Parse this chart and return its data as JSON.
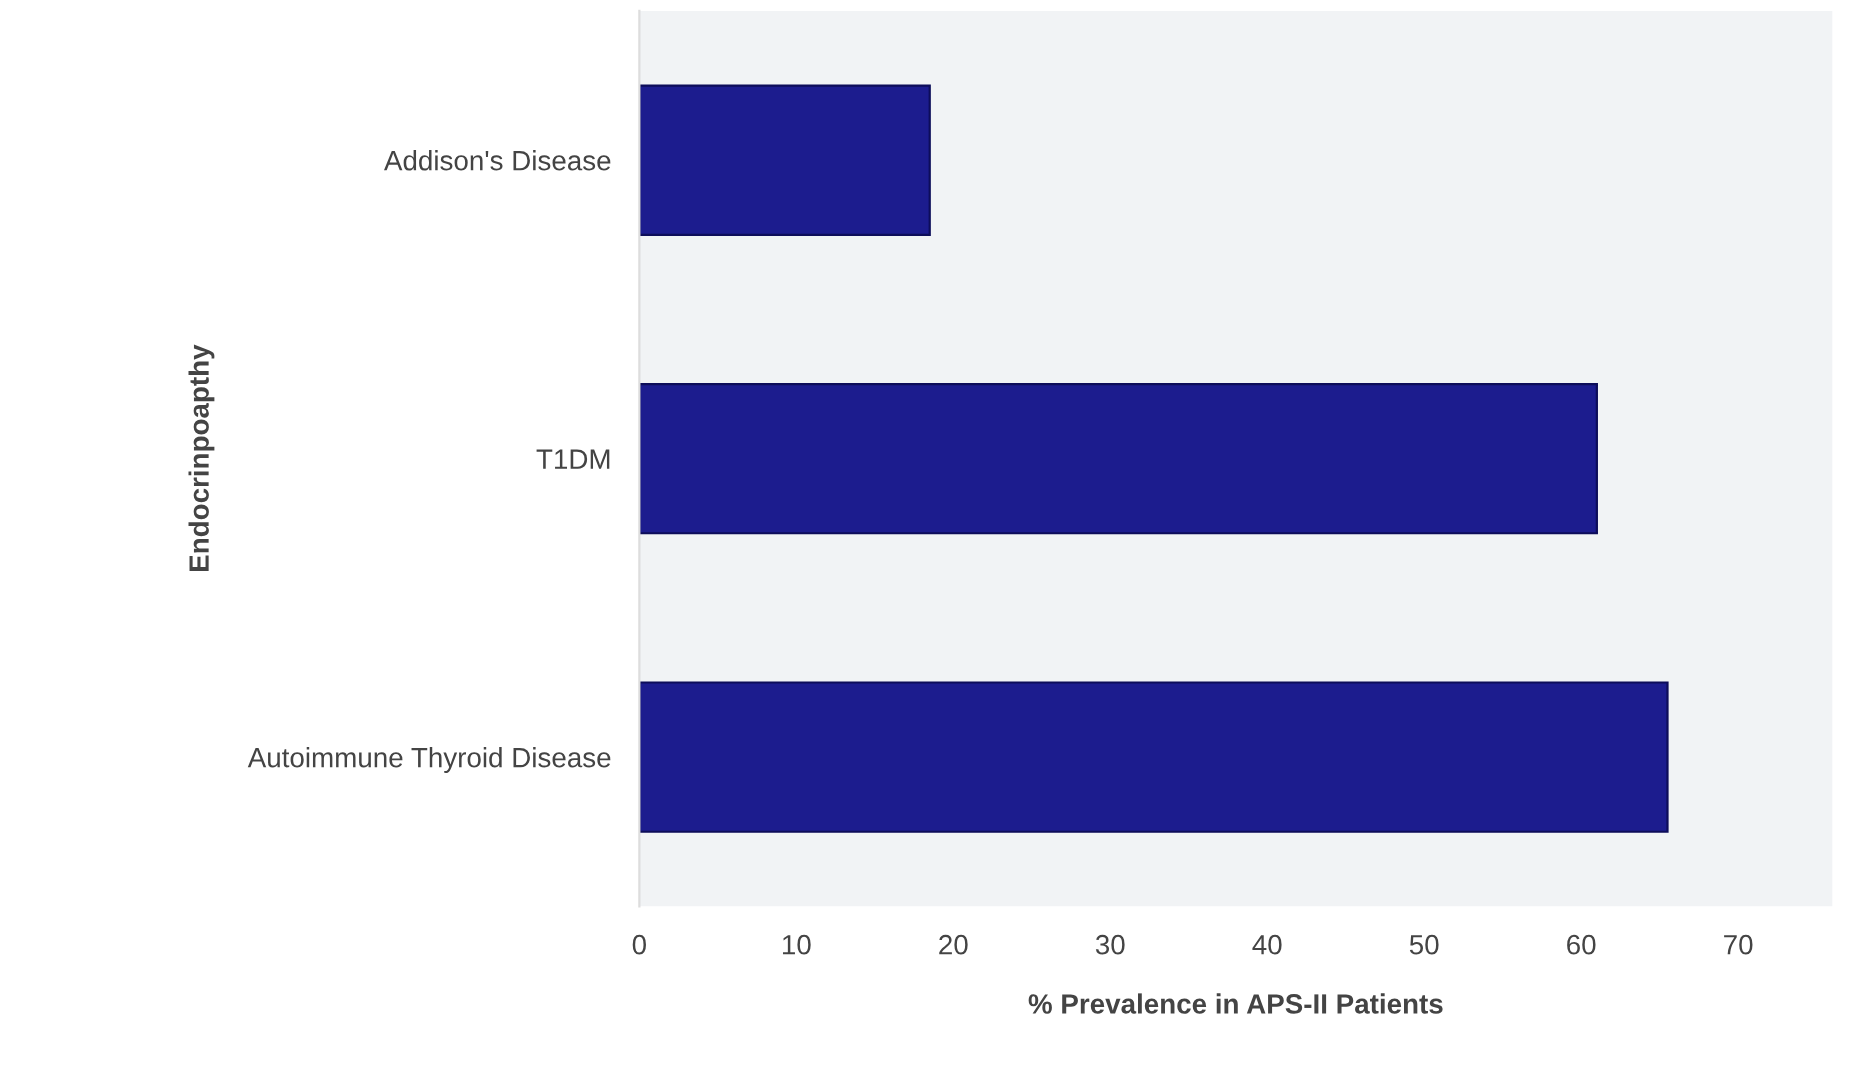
{
  "chart_data": {
    "type": "bar",
    "orientation": "horizontal",
    "categories": [
      "Addison's Disease",
      "T1DM",
      "Autoimmune Thyroid Disease"
    ],
    "values": [
      18.5,
      61,
      65.5
    ],
    "color": "#1c1c8e",
    "xlim": [
      0,
      76
    ],
    "xticks": [
      0,
      10,
      20,
      30,
      40,
      50,
      60,
      70
    ],
    "grid": false,
    "xlabel": "% Prevalence in APS-II Patients",
    "ylabel": "Endocrinpoapthy"
  }
}
